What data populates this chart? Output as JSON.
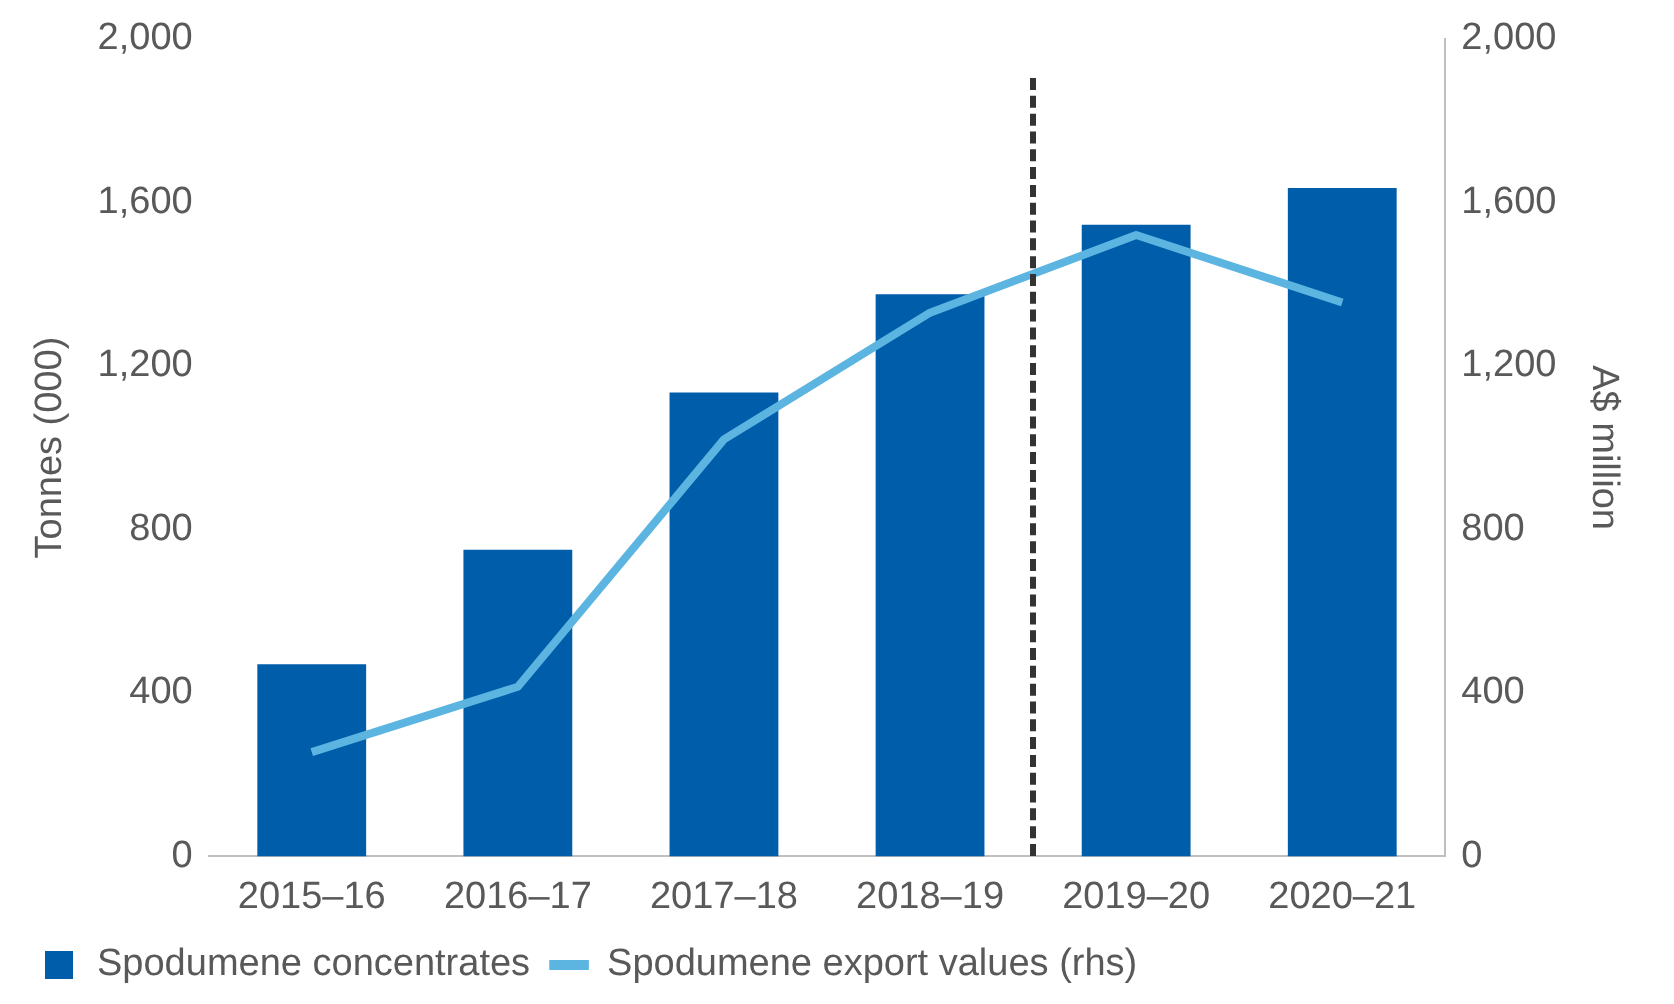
{
  "chart_data": {
    "type": "bar",
    "ylabel": "Tonnes (000)",
    "y2label": "A$ million",
    "categories": [
      "2015–16",
      "2016–17",
      "2017–18",
      "2018–19",
      "2019–20",
      "2020–21"
    ],
    "series": [
      {
        "name": "Spodumene concentrates",
        "color": "#005daa",
        "values": [
          470,
          750,
          1135,
          1375,
          1545,
          1635
        ]
      },
      {
        "name": "Spodumene export values (rhs)",
        "type": "line",
        "axis": "y2",
        "color": "#5bb5e0",
        "values": [
          255,
          415,
          1020,
          1330,
          1520,
          1355
        ]
      }
    ],
    "ylim": [
      0,
      2000
    ],
    "yticks": [
      {
        "value": 0,
        "label": "0"
      },
      {
        "value": 400,
        "label": "400"
      },
      {
        "value": 800,
        "label": "800"
      },
      {
        "value": 1200,
        "label": "1,200"
      },
      {
        "value": 1600,
        "label": "1,600"
      },
      {
        "value": 2000,
        "label": "2,000"
      }
    ],
    "y2lim": [
      0,
      2000
    ],
    "y2ticks": [
      {
        "value": 0,
        "label": "0"
      },
      {
        "value": 400,
        "label": "400"
      },
      {
        "value": 800,
        "label": "800"
      },
      {
        "value": 1200,
        "label": "1,200"
      },
      {
        "value": 1600,
        "label": "1,600"
      },
      {
        "value": 2000,
        "label": "2,000"
      }
    ],
    "legend": "bottom",
    "marker": "none",
    "grid": false
  }
}
